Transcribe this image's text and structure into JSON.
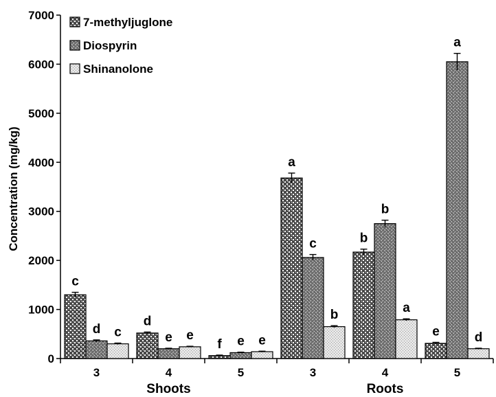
{
  "chart_data": {
    "type": "bar",
    "title": "",
    "ylabel": "Concentration (mg/kg)",
    "xlabel": "",
    "ylim": [
      0,
      7000
    ],
    "yticks": [
      "0",
      "1000",
      "2000",
      "3000",
      "4000",
      "5000",
      "6000",
      "7000"
    ],
    "categories": [
      "3",
      "4",
      "5",
      "3",
      "4",
      "5"
    ],
    "groups": [
      {
        "label": "Shoots",
        "category_indices": [
          0,
          1,
          2
        ]
      },
      {
        "label": "Roots",
        "category_indices": [
          3,
          4,
          5
        ]
      }
    ],
    "legend_position": "top-left",
    "grid": false,
    "series": [
      {
        "name": "7-methyljuglone",
        "values": [
          1300,
          520,
          60,
          3680,
          2170,
          310
        ],
        "errors": [
          50,
          20,
          10,
          100,
          60,
          20
        ],
        "labels": [
          "c",
          "d",
          "f",
          "a",
          "b",
          "e"
        ]
      },
      {
        "name": "Diospyrin",
        "values": [
          360,
          200,
          120,
          2060,
          2750,
          6050
        ],
        "errors": [
          20,
          10,
          10,
          60,
          70,
          170
        ],
        "labels": [
          "d",
          "e",
          "e",
          "c",
          "b",
          "a"
        ]
      },
      {
        "name": "Shinanolone",
        "values": [
          300,
          240,
          140,
          650,
          790,
          200
        ],
        "errors": [
          15,
          10,
          10,
          20,
          20,
          10
        ],
        "labels": [
          "c",
          "e",
          "e",
          "b",
          "a",
          "d"
        ]
      }
    ]
  }
}
